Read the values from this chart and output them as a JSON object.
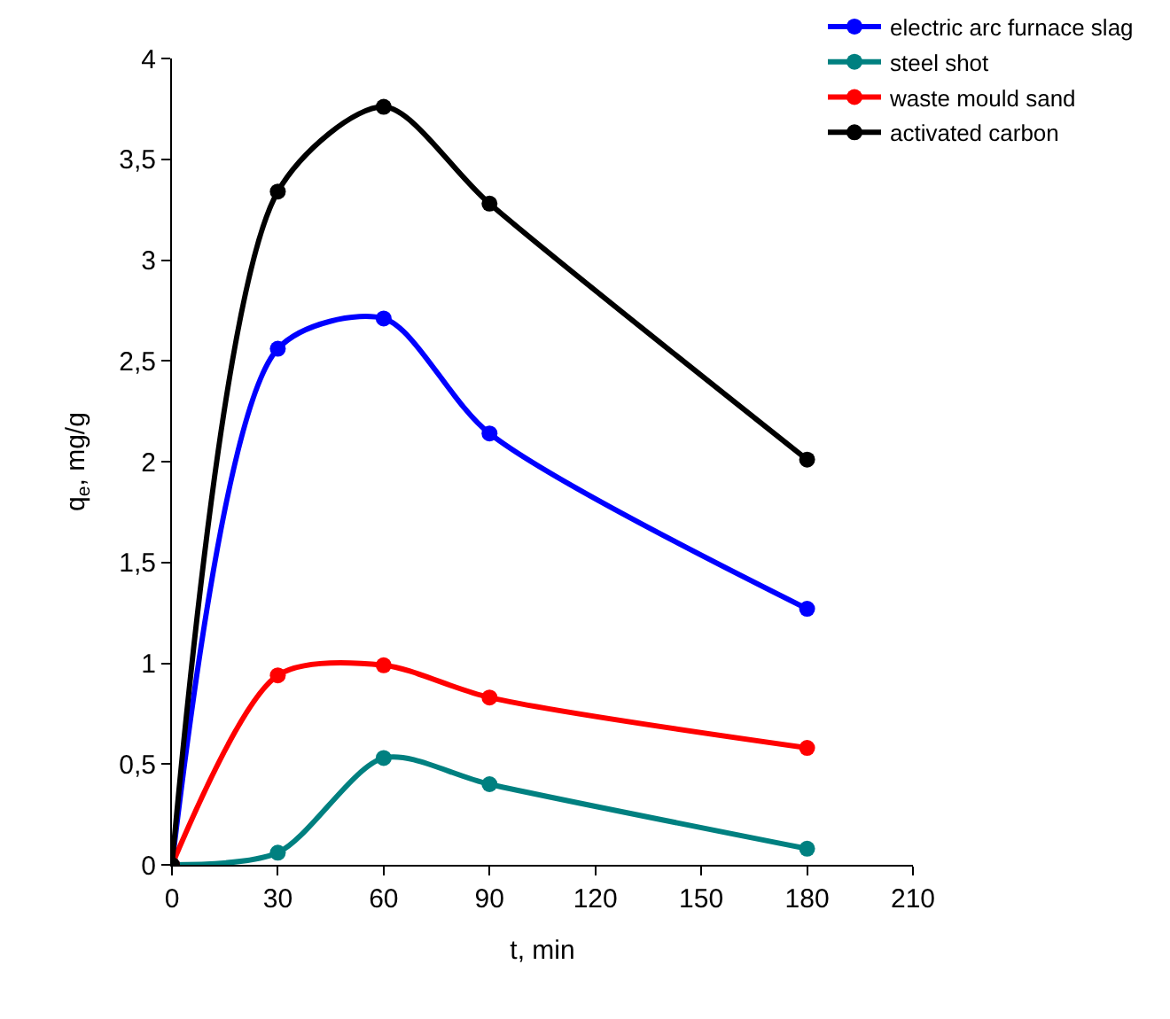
{
  "chart_data": {
    "type": "line",
    "xlabel": "t, min",
    "ylabel": "q$_{e}$, mg/g",
    "x": [
      0,
      30,
      60,
      90,
      180
    ],
    "series": [
      {
        "name": "electric arc furnace slag",
        "color": "#0000ff",
        "values": [
          0,
          2.56,
          2.71,
          2.14,
          1.27
        ]
      },
      {
        "name": "steel shot",
        "color": "#008080",
        "values": [
          0,
          0.06,
          0.53,
          0.4,
          0.08
        ]
      },
      {
        "name": "waste mould sand",
        "color": "#ff0000",
        "values": [
          0,
          0.94,
          0.99,
          0.83,
          0.58
        ]
      },
      {
        "name": "activated carbon",
        "color": "#000000",
        "values": [
          0,
          3.34,
          3.76,
          3.28,
          2.01
        ]
      }
    ],
    "xlim": [
      0,
      210
    ],
    "xticks": [
      0,
      30,
      60,
      90,
      120,
      150,
      180,
      210
    ],
    "ylim": [
      0,
      4
    ],
    "yticks": [
      0,
      {
        "value": 0.5,
        "label": "0,5"
      },
      1,
      {
        "value": 1.5,
        "label": "1,5"
      },
      2,
      {
        "value": 2.5,
        "label": "2,5"
      },
      3,
      {
        "value": 3.5,
        "label": "3,5"
      },
      4
    ],
    "legend": "top right",
    "marker": "circle",
    "line_style": "solid"
  }
}
